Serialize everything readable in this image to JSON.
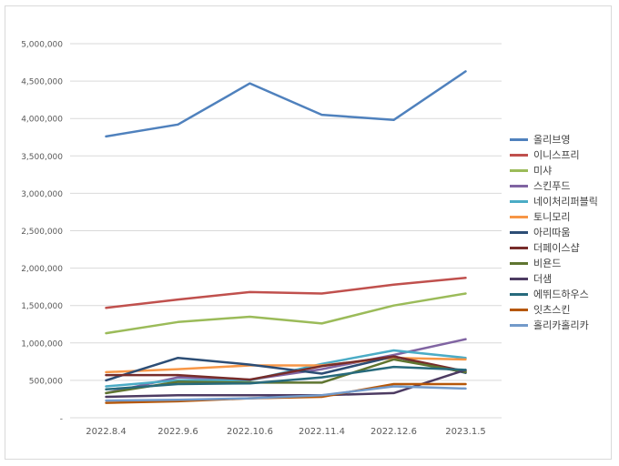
{
  "chart_data": {
    "type": "line",
    "title": "",
    "xlabel": "",
    "ylabel": "",
    "categories": [
      "2022.8.4",
      "2022.9.6",
      "2022.10.6",
      "2022.11.4",
      "2022.12.6",
      "2023.1.5"
    ],
    "ylim": [
      0,
      5000000
    ],
    "yticks": [
      0,
      500000,
      1000000,
      1500000,
      2000000,
      2500000,
      3000000,
      3500000,
      4000000,
      4500000,
      5000000
    ],
    "ytick_labels": [
      "-",
      "500,000",
      "1,000,000",
      "1,500,000",
      "2,000,000",
      "2,500,000",
      "3,000,000",
      "3,500,000",
      "4,000,000",
      "4,500,000",
      "5,000,000"
    ],
    "grid": true,
    "legend_position": "right",
    "series": [
      {
        "name": "올리브영",
        "color": "#4f81bd",
        "values": [
          3760000,
          3920000,
          4470000,
          4050000,
          3980000,
          4630000
        ]
      },
      {
        "name": "이니스프리",
        "color": "#c0504d",
        "values": [
          1470000,
          1580000,
          1680000,
          1660000,
          1780000,
          1870000
        ]
      },
      {
        "name": "미샤",
        "color": "#9bbb59",
        "values": [
          1130000,
          1280000,
          1350000,
          1260000,
          1500000,
          1660000
        ]
      },
      {
        "name": "스킨푸드",
        "color": "#8064a2",
        "values": [
          330000,
          540000,
          510000,
          650000,
          840000,
          1050000
        ]
      },
      {
        "name": "네이처리퍼블릭",
        "color": "#4bacc6",
        "values": [
          420000,
          500000,
          500000,
          720000,
          900000,
          800000
        ]
      },
      {
        "name": "토니모리",
        "color": "#f79646",
        "values": [
          610000,
          650000,
          700000,
          700000,
          800000,
          780000
        ]
      },
      {
        "name": "아리따움",
        "color": "#2c4d75",
        "values": [
          500000,
          800000,
          710000,
          590000,
          820000,
          600000
        ]
      },
      {
        "name": "더페이스샵",
        "color": "#772c2a",
        "values": [
          570000,
          570000,
          510000,
          690000,
          820000,
          620000
        ]
      },
      {
        "name": "비욘드",
        "color": "#5f7530",
        "values": [
          330000,
          480000,
          470000,
          470000,
          780000,
          610000
        ]
      },
      {
        "name": "더샘",
        "color": "#4d3b62",
        "values": [
          280000,
          300000,
          300000,
          300000,
          330000,
          640000
        ]
      },
      {
        "name": "에뛰드하우스",
        "color": "#276a7c",
        "values": [
          380000,
          450000,
          460000,
          540000,
          680000,
          640000
        ]
      },
      {
        "name": "잇츠스킨",
        "color": "#b65708",
        "values": [
          200000,
          220000,
          260000,
          280000,
          450000,
          450000
        ]
      },
      {
        "name": "홀리카홀리카",
        "color": "#729aca",
        "values": [
          230000,
          240000,
          260000,
          300000,
          420000,
          390000
        ]
      }
    ]
  }
}
